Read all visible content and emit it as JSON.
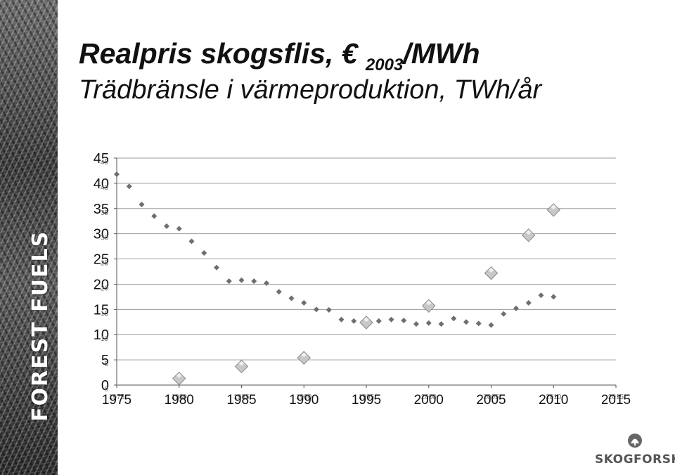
{
  "slide": {
    "title_main": "Realpris skogsflis, € ",
    "title_sub": "2003",
    "title_end": "/MWh",
    "title_line2": "Trädbränsle i värmeproduktion, TWh/år",
    "side_brand": "FOREST FUELS",
    "logo_text": "SKOGFORSK",
    "logo_icon": "skogforsk-logo-icon"
  },
  "chart_data": {
    "type": "scatter",
    "title": "",
    "xlabel": "",
    "ylabel": "",
    "xlim": [
      1975,
      2015
    ],
    "ylim": [
      0,
      45
    ],
    "grid": true,
    "gridlines": "horizontal",
    "yticks_big": [
      "0",
      "5",
      "10",
      "15",
      "20",
      "25",
      "30",
      "35",
      "40",
      "45"
    ],
    "yticks_small": [
      "0",
      "5",
      "10",
      "15",
      "20",
      "25",
      "30",
      "35",
      "40",
      "45"
    ],
    "xticks_big": [
      "1975",
      "1980",
      "1985",
      "1990",
      "1995",
      "2000",
      "2005",
      "2010",
      "2015"
    ],
    "xticks_small": [
      "1975",
      "1980",
      "1985",
      "1990",
      "1995",
      "2000",
      "2005",
      "2010",
      "2015"
    ],
    "series": [
      {
        "marker": "small-diamond",
        "color": "#6e6e6e",
        "points": [
          [
            1975,
            41.8
          ],
          [
            1976,
            39.4
          ],
          [
            1977,
            35.8
          ],
          [
            1978,
            33.5
          ],
          [
            1979,
            31.5
          ],
          [
            1980,
            31.0
          ],
          [
            1981,
            28.5
          ],
          [
            1982,
            26.2
          ],
          [
            1983,
            23.3
          ],
          [
            1984,
            20.6
          ],
          [
            1985,
            20.8
          ],
          [
            1986,
            20.6
          ],
          [
            1987,
            20.2
          ],
          [
            1988,
            18.5
          ],
          [
            1989,
            17.2
          ],
          [
            1990,
            16.3
          ],
          [
            1991,
            15.0
          ],
          [
            1992,
            14.9
          ],
          [
            1993,
            13.0
          ],
          [
            1994,
            12.7
          ],
          [
            1995,
            12.6
          ],
          [
            1996,
            12.7
          ],
          [
            1997,
            13.0
          ],
          [
            1998,
            12.8
          ],
          [
            1999,
            12.1
          ],
          [
            2000,
            12.3
          ],
          [
            2001,
            12.1
          ],
          [
            2002,
            13.2
          ],
          [
            2003,
            12.5
          ],
          [
            2004,
            12.2
          ],
          [
            2005,
            11.9
          ],
          [
            2006,
            14.1
          ],
          [
            2007,
            15.2
          ],
          [
            2008,
            16.3
          ],
          [
            2009,
            17.8
          ],
          [
            2010,
            17.5
          ]
        ]
      },
      {
        "marker": "large-diamond",
        "color": "#c8c8c8",
        "points": [
          [
            1980,
            1.3
          ],
          [
            1985,
            3.7
          ],
          [
            1990,
            5.4
          ],
          [
            1995,
            12.4
          ],
          [
            2000,
            15.7
          ],
          [
            2005,
            22.2
          ],
          [
            2008,
            29.7
          ],
          [
            2010,
            34.7
          ]
        ]
      }
    ]
  }
}
